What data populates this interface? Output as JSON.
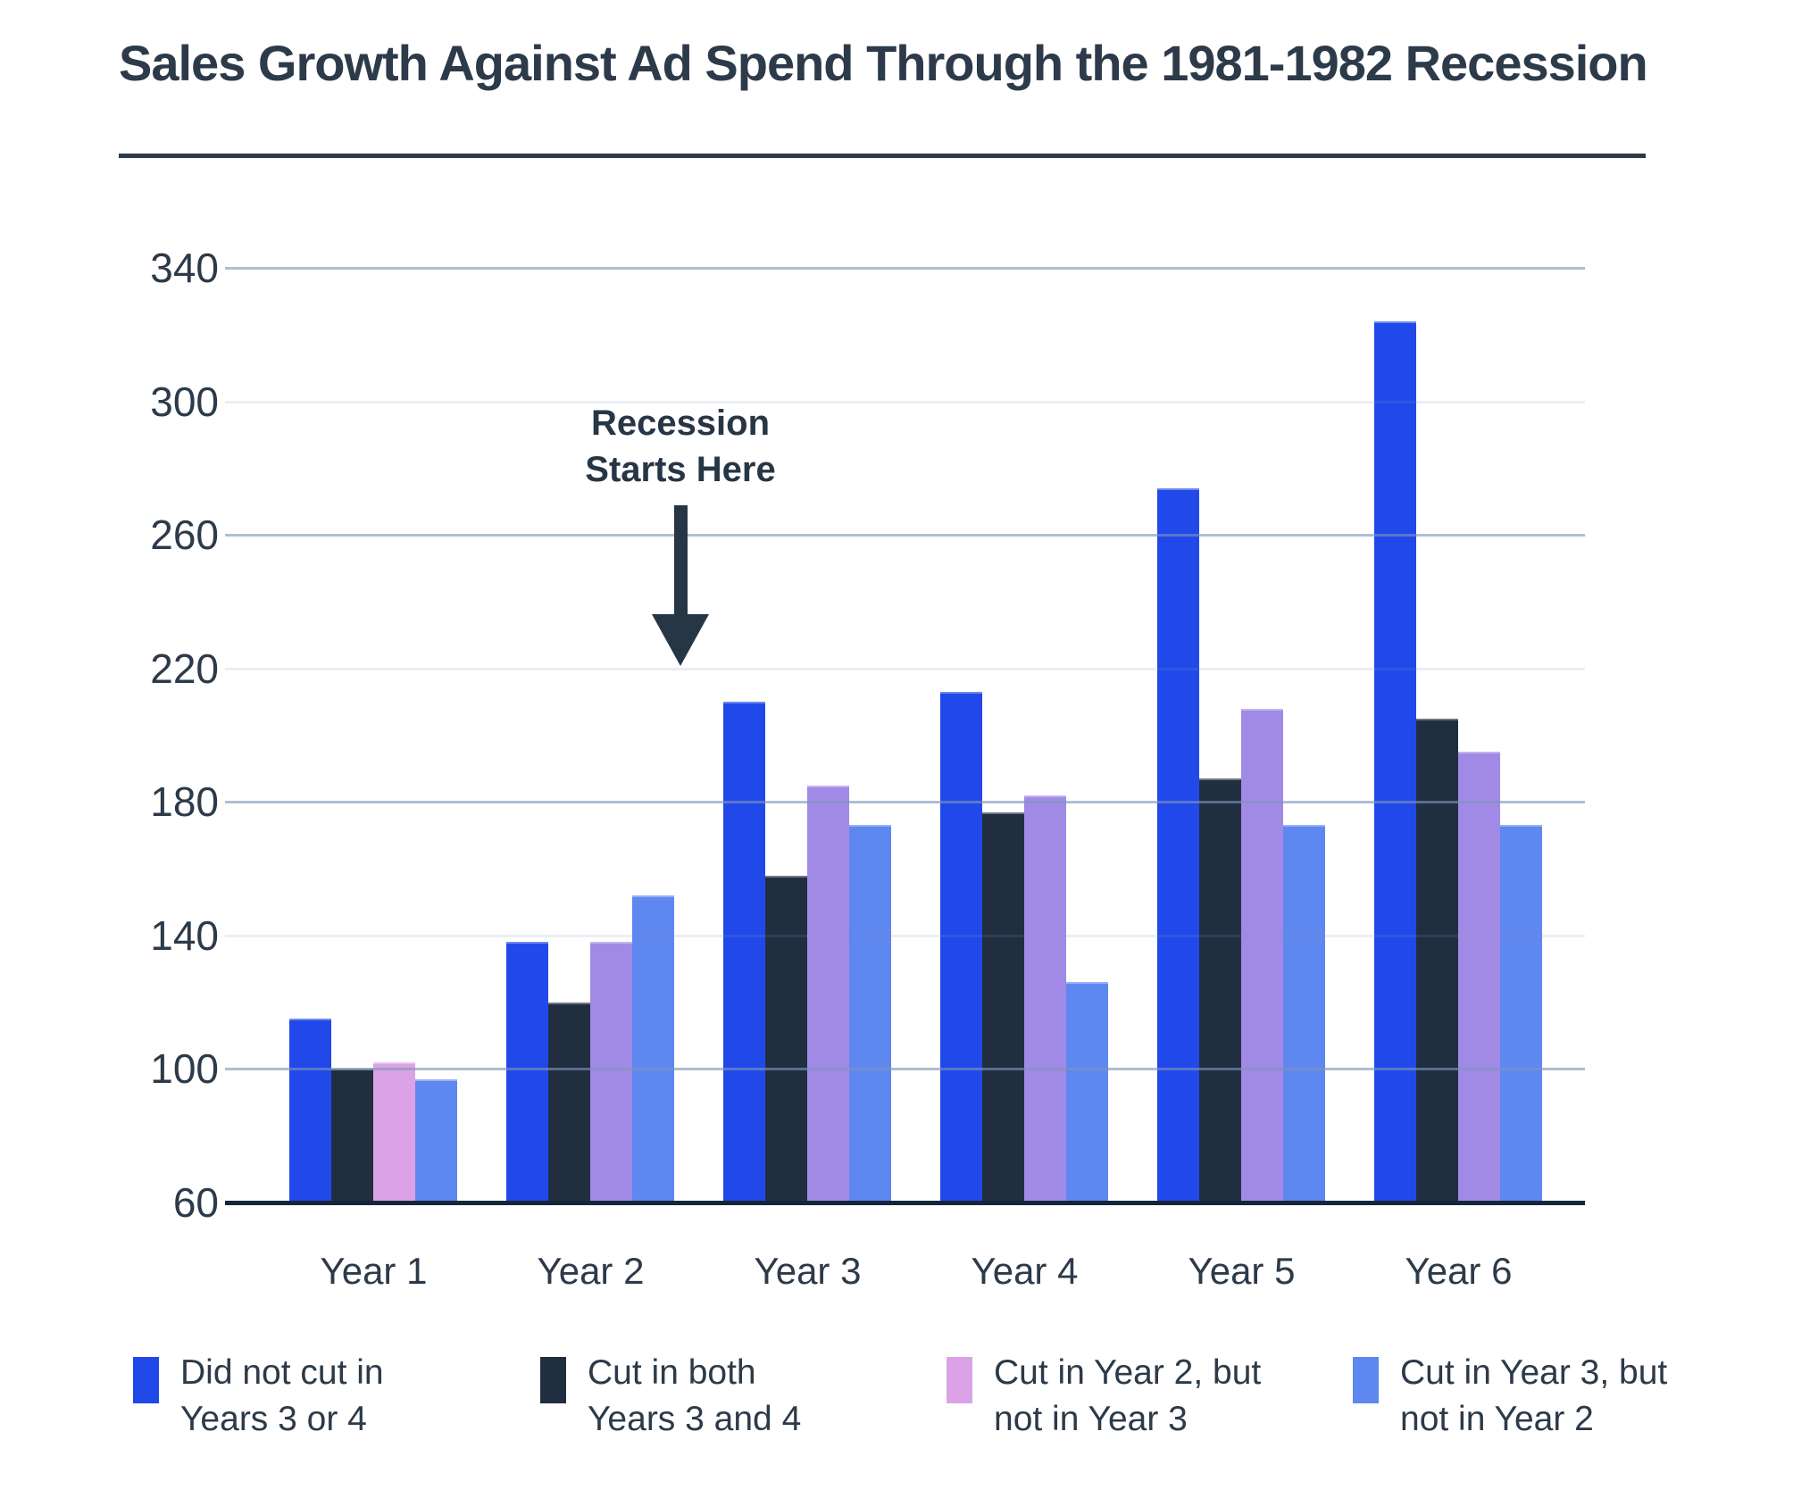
{
  "title": "Sales Growth Against Ad Spend Through the 1981-1982 Recession",
  "annotation": {
    "line1": "Recession",
    "line2": "Starts Here"
  },
  "colors": {
    "blue": "#2149e9",
    "dark_navy": "#212e40",
    "purple": "#a18ae6",
    "pink": "#dba3e6",
    "light_blue": "#5e87f0",
    "gridline": "#8095b9",
    "axis_line": "#16263a",
    "text": "#2c3a49",
    "arrow": "#263645"
  },
  "chart_data": {
    "type": "bar",
    "title": "Sales Growth Against Ad Spend Through the 1981-1982 Recession",
    "categories": [
      "Year 1",
      "Year 2",
      "Year 3",
      "Year 4",
      "Year 5",
      "Year 6"
    ],
    "series": [
      {
        "name": "Did not cut in Years 3 or 4",
        "color": "#2149e9",
        "values": [
          115,
          138,
          210,
          213,
          274,
          324
        ]
      },
      {
        "name": "Cut in both Years 3 and 4",
        "color": "#212e40",
        "values": [
          100,
          120,
          158,
          177,
          187,
          205
        ]
      },
      {
        "name": "Cut in Year 2, but not in Year 3",
        "color": "#a18ae6",
        "colors_by_year": [
          "#dba3e6",
          "#a18ae6",
          "#a18ae6",
          "#a18ae6",
          "#a18ae6",
          "#a18ae6"
        ],
        "values": [
          102,
          138,
          185,
          182,
          208,
          195
        ]
      },
      {
        "name": "Cut in Year 3, but not in Year 2",
        "color": "#5e87f0",
        "values": [
          97,
          152,
          173,
          126,
          173,
          173
        ]
      }
    ],
    "xlabel": "",
    "ylabel": "",
    "ylim": [
      60,
      340
    ],
    "y_ticks": [
      340,
      300,
      260,
      220,
      180,
      140,
      100,
      60
    ],
    "major_gridlines": [
      340,
      260,
      180,
      100
    ],
    "minor_gridlines": [
      300,
      220,
      140
    ],
    "legend_position": "bottom",
    "annotation": "Recession Starts Here (arrow between Year 2 and Year 3)"
  },
  "legend": {
    "items": [
      {
        "lines": [
          "Did not cut in",
          "Years 3 or 4"
        ],
        "color": "#2149e9"
      },
      {
        "lines": [
          "Cut in both",
          "Years 3 and 4"
        ],
        "color": "#212e40"
      },
      {
        "lines": [
          "Cut in Year 2, but",
          "not in Year 3"
        ],
        "color": "#dba3e6"
      },
      {
        "lines": [
          "Cut in Year 3, but",
          "not in Year 2"
        ],
        "color": "#5e87f0"
      }
    ]
  }
}
